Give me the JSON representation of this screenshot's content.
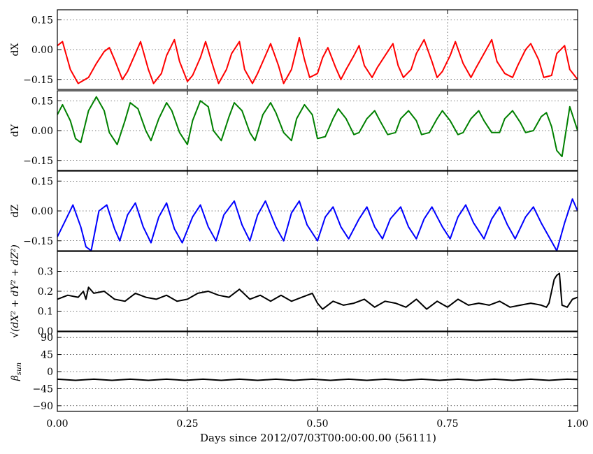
{
  "figure": {
    "xlabel": "Days since 2012/07/03T00:00:00.00 (56111)"
  },
  "chart_data": [
    {
      "type": "line",
      "ylabel": "dX",
      "ylim": [
        -0.2,
        0.2
      ],
      "yticks": [
        0.15,
        0.0,
        -0.15
      ],
      "ytick_labels": [
        "0.15",
        "0.00",
        "−0.15"
      ],
      "xlim": [
        0.0,
        1.0
      ],
      "grid": true,
      "series": [
        {
          "color": "#ff0000",
          "x": [
            0.0,
            0.01,
            0.025,
            0.04,
            0.06,
            0.075,
            0.09,
            0.1,
            0.11,
            0.125,
            0.135,
            0.15,
            0.16,
            0.175,
            0.185,
            0.2,
            0.21,
            0.225,
            0.235,
            0.25,
            0.26,
            0.275,
            0.285,
            0.3,
            0.31,
            0.325,
            0.335,
            0.35,
            0.36,
            0.375,
            0.385,
            0.4,
            0.41,
            0.425,
            0.435,
            0.45,
            0.465,
            0.475,
            0.485,
            0.5,
            0.51,
            0.52,
            0.535,
            0.545,
            0.555,
            0.57,
            0.58,
            0.59,
            0.605,
            0.615,
            0.63,
            0.645,
            0.655,
            0.665,
            0.68,
            0.69,
            0.705,
            0.72,
            0.73,
            0.74,
            0.755,
            0.765,
            0.78,
            0.795,
            0.805,
            0.82,
            0.835,
            0.845,
            0.86,
            0.875,
            0.885,
            0.9,
            0.91,
            0.925,
            0.935,
            0.95,
            0.96,
            0.975,
            0.985,
            1.0
          ],
          "y": [
            0.02,
            0.04,
            -0.1,
            -0.17,
            -0.14,
            -0.07,
            -0.01,
            0.01,
            -0.05,
            -0.15,
            -0.11,
            -0.02,
            0.04,
            -0.1,
            -0.17,
            -0.12,
            -0.03,
            0.05,
            -0.06,
            -0.16,
            -0.13,
            -0.04,
            0.04,
            -0.09,
            -0.17,
            -0.1,
            -0.02,
            0.04,
            -0.1,
            -0.17,
            -0.12,
            -0.03,
            0.03,
            -0.08,
            -0.17,
            -0.1,
            0.06,
            -0.05,
            -0.14,
            -0.12,
            -0.04,
            0.01,
            -0.09,
            -0.15,
            -0.1,
            -0.03,
            0.02,
            -0.08,
            -0.14,
            -0.09,
            -0.03,
            0.03,
            -0.08,
            -0.14,
            -0.1,
            -0.02,
            0.05,
            -0.06,
            -0.14,
            -0.11,
            -0.03,
            0.04,
            -0.07,
            -0.14,
            -0.09,
            -0.02,
            0.05,
            -0.06,
            -0.12,
            -0.14,
            -0.08,
            0.0,
            0.03,
            -0.05,
            -0.14,
            -0.13,
            -0.02,
            0.02,
            -0.1,
            -0.15
          ]
        }
      ]
    },
    {
      "type": "line",
      "ylabel": "dY",
      "ylim": [
        -0.2,
        0.2
      ],
      "yticks": [
        0.15,
        0.0,
        -0.15
      ],
      "ytick_labels": [
        "0.15",
        "0.00",
        "−0.15"
      ],
      "xlim": [
        0.0,
        1.0
      ],
      "grid": true,
      "series": [
        {
          "color": "#008000",
          "x": [
            0.0,
            0.01,
            0.025,
            0.035,
            0.045,
            0.06,
            0.075,
            0.09,
            0.1,
            0.115,
            0.13,
            0.14,
            0.155,
            0.17,
            0.18,
            0.195,
            0.21,
            0.22,
            0.235,
            0.25,
            0.26,
            0.275,
            0.29,
            0.3,
            0.315,
            0.33,
            0.34,
            0.355,
            0.37,
            0.38,
            0.395,
            0.41,
            0.42,
            0.435,
            0.45,
            0.46,
            0.475,
            0.49,
            0.5,
            0.515,
            0.53,
            0.54,
            0.555,
            0.57,
            0.58,
            0.595,
            0.61,
            0.62,
            0.635,
            0.65,
            0.66,
            0.675,
            0.69,
            0.7,
            0.715,
            0.73,
            0.74,
            0.755,
            0.77,
            0.78,
            0.795,
            0.81,
            0.82,
            0.835,
            0.85,
            0.86,
            0.875,
            0.89,
            0.9,
            0.915,
            0.93,
            0.94,
            0.95,
            0.96,
            0.97,
            0.985,
            1.0
          ],
          "y": [
            0.08,
            0.13,
            0.05,
            -0.04,
            -0.06,
            0.1,
            0.17,
            0.1,
            -0.01,
            -0.07,
            0.05,
            0.14,
            0.11,
            0.0,
            -0.05,
            0.06,
            0.14,
            0.1,
            -0.01,
            -0.07,
            0.05,
            0.15,
            0.12,
            0.0,
            -0.05,
            0.07,
            0.14,
            0.1,
            -0.01,
            -0.05,
            0.08,
            0.14,
            0.09,
            -0.01,
            -0.05,
            0.06,
            0.13,
            0.08,
            -0.04,
            -0.03,
            0.06,
            0.11,
            0.06,
            -0.02,
            -0.01,
            0.06,
            0.1,
            0.05,
            -0.02,
            -0.01,
            0.06,
            0.1,
            0.05,
            -0.02,
            -0.01,
            0.06,
            0.1,
            0.05,
            -0.02,
            -0.01,
            0.06,
            0.1,
            0.05,
            -0.01,
            -0.01,
            0.06,
            0.1,
            0.04,
            -0.01,
            0.0,
            0.07,
            0.09,
            0.02,
            -0.1,
            -0.13,
            0.12,
            0.0
          ]
        }
      ]
    },
    {
      "type": "line",
      "ylabel": "dZ",
      "ylim": [
        -0.2,
        0.2
      ],
      "yticks": [
        0.15,
        0.0,
        -0.15
      ],
      "ytick_labels": [
        "0.15",
        "0.00",
        "−0.15"
      ],
      "xlim": [
        0.0,
        1.0
      ],
      "grid": true,
      "series": [
        {
          "color": "#0000ff",
          "x": [
            0.0,
            0.015,
            0.03,
            0.045,
            0.055,
            0.065,
            0.08,
            0.095,
            0.11,
            0.12,
            0.135,
            0.15,
            0.165,
            0.18,
            0.195,
            0.21,
            0.225,
            0.24,
            0.26,
            0.275,
            0.29,
            0.305,
            0.32,
            0.34,
            0.355,
            0.37,
            0.385,
            0.4,
            0.42,
            0.435,
            0.45,
            0.465,
            0.48,
            0.5,
            0.515,
            0.53,
            0.545,
            0.56,
            0.58,
            0.595,
            0.61,
            0.625,
            0.64,
            0.66,
            0.675,
            0.69,
            0.705,
            0.72,
            0.74,
            0.755,
            0.77,
            0.785,
            0.8,
            0.82,
            0.835,
            0.85,
            0.865,
            0.88,
            0.9,
            0.915,
            0.93,
            0.945,
            0.96,
            0.975,
            0.99,
            1.0
          ],
          "y": [
            -0.13,
            -0.05,
            0.03,
            -0.08,
            -0.18,
            -0.2,
            0.0,
            0.03,
            -0.09,
            -0.15,
            -0.02,
            0.04,
            -0.08,
            -0.16,
            -0.03,
            0.04,
            -0.09,
            -0.16,
            -0.03,
            0.03,
            -0.08,
            -0.15,
            -0.02,
            0.05,
            -0.07,
            -0.15,
            -0.02,
            0.05,
            -0.08,
            -0.15,
            -0.01,
            0.05,
            -0.07,
            -0.15,
            -0.03,
            0.02,
            -0.08,
            -0.14,
            -0.04,
            0.02,
            -0.08,
            -0.14,
            -0.04,
            0.02,
            -0.08,
            -0.14,
            -0.04,
            0.02,
            -0.08,
            -0.14,
            -0.03,
            0.03,
            -0.06,
            -0.14,
            -0.04,
            0.02,
            -0.07,
            -0.14,
            -0.03,
            0.02,
            -0.06,
            -0.13,
            -0.2,
            -0.06,
            0.06,
            0.0
          ]
        }
      ]
    },
    {
      "type": "line",
      "ylabel": "√(dX² + dY² + dZ²)",
      "ylim": [
        0.0,
        0.4
      ],
      "yticks": [
        0.3,
        0.2,
        0.1,
        0.0
      ],
      "ytick_labels": [
        "0.3",
        "0.2",
        "0.1",
        "0.0"
      ],
      "xlim": [
        0.0,
        1.0
      ],
      "grid": true,
      "series": [
        {
          "color": "#000000",
          "x": [
            0.0,
            0.02,
            0.04,
            0.05,
            0.055,
            0.06,
            0.07,
            0.09,
            0.11,
            0.13,
            0.15,
            0.17,
            0.19,
            0.21,
            0.23,
            0.25,
            0.27,
            0.29,
            0.31,
            0.33,
            0.35,
            0.37,
            0.39,
            0.41,
            0.43,
            0.45,
            0.47,
            0.49,
            0.5,
            0.51,
            0.53,
            0.55,
            0.57,
            0.59,
            0.61,
            0.63,
            0.65,
            0.67,
            0.69,
            0.71,
            0.73,
            0.75,
            0.77,
            0.79,
            0.81,
            0.83,
            0.85,
            0.87,
            0.89,
            0.91,
            0.93,
            0.94,
            0.945,
            0.955,
            0.96,
            0.965,
            0.97,
            0.98,
            0.99,
            1.0
          ],
          "y": [
            0.16,
            0.18,
            0.17,
            0.2,
            0.16,
            0.22,
            0.19,
            0.2,
            0.16,
            0.15,
            0.19,
            0.17,
            0.16,
            0.18,
            0.15,
            0.16,
            0.19,
            0.2,
            0.18,
            0.17,
            0.21,
            0.16,
            0.18,
            0.15,
            0.18,
            0.15,
            0.17,
            0.19,
            0.14,
            0.11,
            0.15,
            0.13,
            0.14,
            0.16,
            0.12,
            0.15,
            0.14,
            0.12,
            0.16,
            0.11,
            0.15,
            0.12,
            0.16,
            0.13,
            0.14,
            0.13,
            0.15,
            0.12,
            0.13,
            0.14,
            0.13,
            0.12,
            0.14,
            0.26,
            0.28,
            0.29,
            0.13,
            0.12,
            0.16,
            0.17
          ]
        }
      ]
    },
    {
      "type": "line",
      "ylabel": "βsun",
      "ylim": [
        -105,
        105
      ],
      "yticks": [
        90,
        45,
        0,
        -45,
        -90
      ],
      "ytick_labels": [
        "90",
        "45",
        "0",
        "−45",
        "−90"
      ],
      "xlim": [
        0.0,
        1.0
      ],
      "xticks": [
        0.0,
        0.25,
        0.5,
        0.75,
        1.0
      ],
      "xtick_labels": [
        "0.00",
        "0.25",
        "0.50",
        "0.75",
        "1.00"
      ],
      "grid": true,
      "series": [
        {
          "color": "#000000",
          "x": [
            0.0,
            0.035,
            0.07,
            0.105,
            0.14,
            0.175,
            0.21,
            0.245,
            0.28,
            0.315,
            0.35,
            0.385,
            0.42,
            0.455,
            0.49,
            0.525,
            0.56,
            0.595,
            0.63,
            0.665,
            0.7,
            0.735,
            0.77,
            0.805,
            0.84,
            0.875,
            0.91,
            0.945,
            0.98,
            1.0
          ],
          "y": [
            -20,
            -23,
            -20,
            -23,
            -20,
            -23,
            -20,
            -23,
            -20,
            -23,
            -20,
            -23,
            -20,
            -23,
            -20,
            -23,
            -20,
            -23,
            -20,
            -23,
            -20,
            -23,
            -20,
            -23,
            -20,
            -23,
            -20,
            -23,
            -20,
            -21
          ]
        }
      ]
    }
  ]
}
